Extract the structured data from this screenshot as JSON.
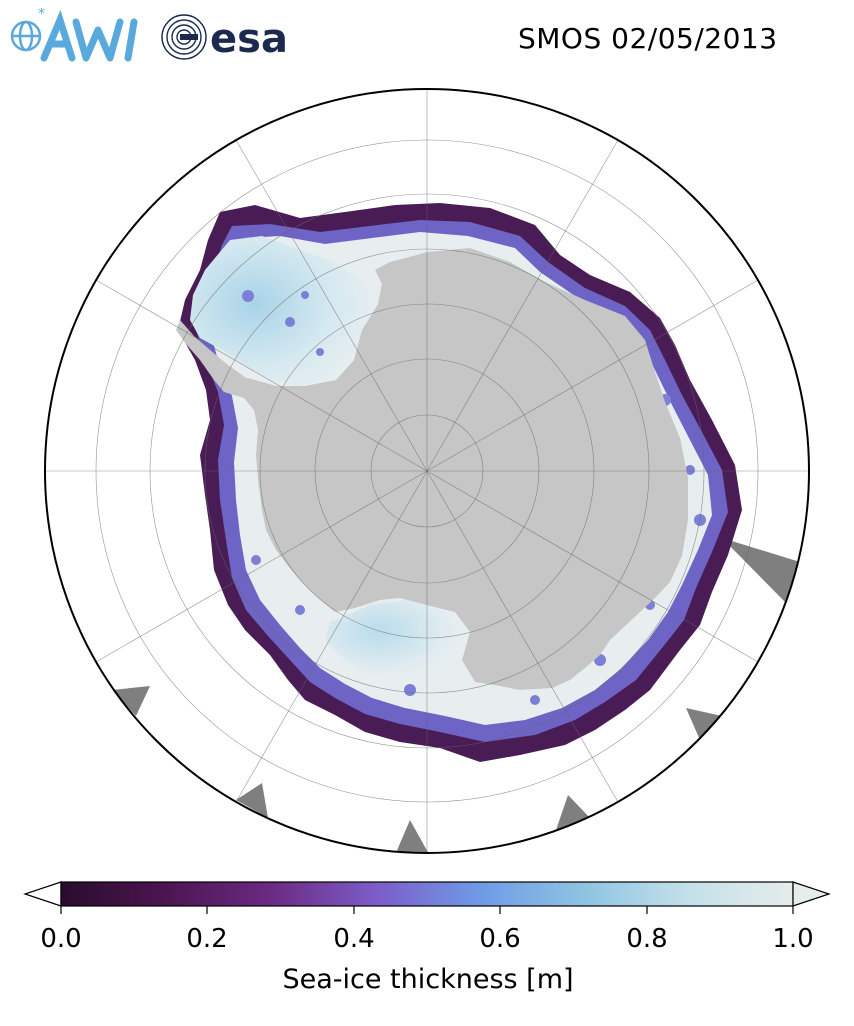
{
  "title": "SMOS 02/05/2013",
  "logos": [
    {
      "name": "AWI",
      "color": "#5aa9dd"
    },
    {
      "name": "esa",
      "color": "#1b2a4e"
    }
  ],
  "map": {
    "projection": "south-polar-stereographic",
    "graticule": true,
    "colors": {
      "land": "#c6c6c6",
      "no_data": "#7f7f7f",
      "ocean": "#ffffff",
      "ice_thick": "#e8eef0",
      "ice_mid": "#8fc6e2",
      "ice_thin": "#4a1c55"
    }
  },
  "colorbar": {
    "label": "Sea-ice thickness [m]",
    "ticks": [
      "0.0",
      "0.2",
      "0.4",
      "0.6",
      "0.8",
      "1.0"
    ],
    "range": [
      0.0,
      1.0
    ],
    "extend": "both",
    "colormap": [
      "#2a0c2e",
      "#4b1550",
      "#6b2a82",
      "#7c5cc8",
      "#6f9ae6",
      "#8ec4e2",
      "#c4e0ea",
      "#e6eceb"
    ]
  }
}
